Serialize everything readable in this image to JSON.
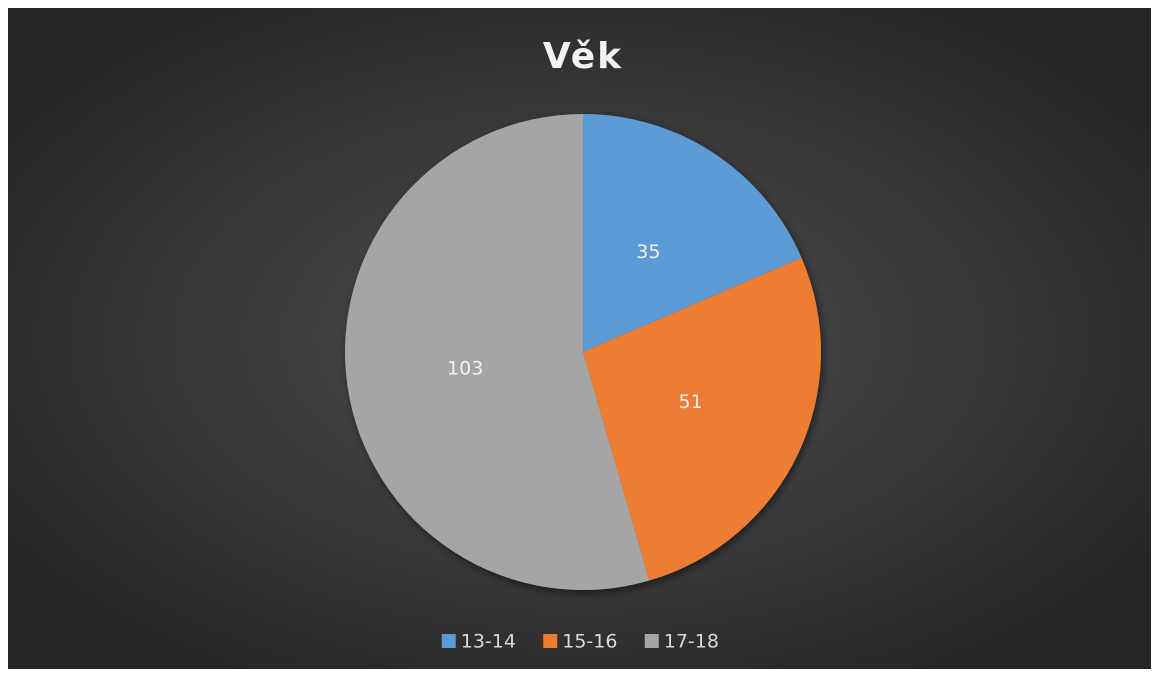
{
  "chart_data": {
    "type": "pie",
    "title": "Věk",
    "categories": [
      "13-14",
      "15-16",
      "17-18"
    ],
    "values": [
      35,
      51,
      103
    ],
    "colors": [
      "#5b9bd5",
      "#ed7d31",
      "#a5a5a5"
    ],
    "legend": "bottom"
  }
}
